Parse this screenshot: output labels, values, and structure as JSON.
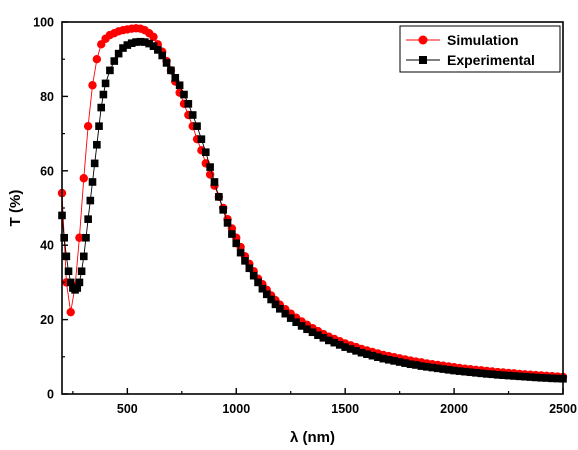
{
  "chart_data": {
    "type": "scatter",
    "xlabel": "λ (nm)",
    "ylabel": "T (%)",
    "xlim": [
      200,
      2500
    ],
    "ylim": [
      0,
      100
    ],
    "xticks": [
      500,
      1000,
      1500,
      2000,
      2500
    ],
    "yticks": [
      0,
      20,
      40,
      60,
      80,
      100
    ],
    "xtick_labels": [
      "500",
      "1000",
      "1500",
      "2000",
      "2500"
    ],
    "ytick_labels": [
      "0",
      "20",
      "40",
      "60",
      "80",
      "100"
    ],
    "grid": false,
    "legend_position": "top-right",
    "series": [
      {
        "name": "Simulation",
        "color": "#ff0000",
        "marker": "circle",
        "connected": true,
        "points": [
          [
            200,
            54
          ],
          [
            220,
            30
          ],
          [
            240,
            22
          ],
          [
            260,
            29
          ],
          [
            280,
            42
          ],
          [
            300,
            58
          ],
          [
            320,
            72
          ],
          [
            340,
            83
          ],
          [
            360,
            90
          ],
          [
            380,
            94
          ],
          [
            400,
            95.5
          ],
          [
            420,
            96.5
          ],
          [
            440,
            97
          ],
          [
            460,
            97.5
          ],
          [
            480,
            97.8
          ],
          [
            500,
            98
          ],
          [
            520,
            98.2
          ],
          [
            540,
            98.3
          ],
          [
            560,
            98.2
          ],
          [
            580,
            97.8
          ],
          [
            600,
            97
          ],
          [
            620,
            96
          ],
          [
            640,
            94
          ],
          [
            660,
            92
          ],
          [
            680,
            89.5
          ],
          [
            700,
            87
          ],
          [
            720,
            84
          ],
          [
            740,
            81
          ],
          [
            760,
            78
          ],
          [
            780,
            75
          ],
          [
            800,
            72
          ],
          [
            820,
            68.5
          ],
          [
            840,
            65.5
          ],
          [
            860,
            62
          ],
          [
            880,
            59
          ],
          [
            900,
            56
          ],
          [
            920,
            53
          ],
          [
            940,
            50
          ],
          [
            960,
            47
          ],
          [
            980,
            44.5
          ],
          [
            1000,
            42
          ],
          [
            1020,
            39.5
          ],
          [
            1040,
            37
          ],
          [
            1060,
            35
          ],
          [
            1080,
            33
          ],
          [
            1100,
            31
          ],
          [
            1120,
            29.5
          ],
          [
            1140,
            28
          ],
          [
            1160,
            26.5
          ],
          [
            1180,
            25.2
          ],
          [
            1200,
            24
          ],
          [
            1225,
            22.8
          ],
          [
            1250,
            21.6
          ],
          [
            1275,
            20.5
          ],
          [
            1300,
            19.5
          ],
          [
            1325,
            18.6
          ],
          [
            1350,
            17.7
          ],
          [
            1375,
            16.9
          ],
          [
            1400,
            16.1
          ],
          [
            1425,
            15.4
          ],
          [
            1450,
            14.8
          ],
          [
            1475,
            14.2
          ],
          [
            1500,
            13.6
          ],
          [
            1525,
            13.1
          ],
          [
            1550,
            12.6
          ],
          [
            1575,
            12.1
          ],
          [
            1600,
            11.7
          ],
          [
            1625,
            11.3
          ],
          [
            1650,
            10.9
          ],
          [
            1675,
            10.5
          ],
          [
            1700,
            10.2
          ],
          [
            1725,
            9.9
          ],
          [
            1750,
            9.6
          ],
          [
            1775,
            9.3
          ],
          [
            1800,
            9.0
          ],
          [
            1825,
            8.7
          ],
          [
            1850,
            8.5
          ],
          [
            1875,
            8.2
          ],
          [
            1900,
            8.0
          ],
          [
            1925,
            7.8
          ],
          [
            1950,
            7.6
          ],
          [
            1975,
            7.4
          ],
          [
            2000,
            7.2
          ],
          [
            2025,
            7.0
          ],
          [
            2050,
            6.8
          ],
          [
            2075,
            6.65
          ],
          [
            2100,
            6.5
          ],
          [
            2125,
            6.35
          ],
          [
            2150,
            6.2
          ],
          [
            2175,
            6.05
          ],
          [
            2200,
            5.9
          ],
          [
            2225,
            5.8
          ],
          [
            2250,
            5.65
          ],
          [
            2275,
            5.55
          ],
          [
            2300,
            5.4
          ],
          [
            2325,
            5.3
          ],
          [
            2350,
            5.2
          ],
          [
            2375,
            5.1
          ],
          [
            2400,
            5.0
          ],
          [
            2425,
            4.9
          ],
          [
            2450,
            4.8
          ],
          [
            2475,
            4.7
          ],
          [
            2500,
            4.6
          ]
        ]
      },
      {
        "name": "Experimental",
        "color": "#000000",
        "marker": "square",
        "connected": true,
        "points": [
          [
            200,
            48
          ],
          [
            210,
            42
          ],
          [
            220,
            37
          ],
          [
            230,
            33
          ],
          [
            240,
            30
          ],
          [
            250,
            28.5
          ],
          [
            260,
            28
          ],
          [
            270,
            28.5
          ],
          [
            280,
            30
          ],
          [
            290,
            33
          ],
          [
            300,
            37
          ],
          [
            310,
            42
          ],
          [
            320,
            47
          ],
          [
            330,
            52
          ],
          [
            340,
            57
          ],
          [
            350,
            62
          ],
          [
            360,
            67
          ],
          [
            370,
            72
          ],
          [
            380,
            77
          ],
          [
            390,
            80.5
          ],
          [
            400,
            83.5
          ],
          [
            420,
            87
          ],
          [
            440,
            89.5
          ],
          [
            460,
            91.5
          ],
          [
            480,
            93
          ],
          [
            500,
            93.8
          ],
          [
            520,
            94.3
          ],
          [
            540,
            94.6
          ],
          [
            560,
            94.7
          ],
          [
            580,
            94.6
          ],
          [
            600,
            94.2
          ],
          [
            620,
            93.5
          ],
          [
            640,
            92.5
          ],
          [
            660,
            91
          ],
          [
            680,
            89
          ],
          [
            700,
            87
          ],
          [
            720,
            85
          ],
          [
            740,
            83
          ],
          [
            760,
            80.5
          ],
          [
            780,
            78
          ],
          [
            800,
            75
          ],
          [
            820,
            72
          ],
          [
            840,
            68.5
          ],
          [
            860,
            65
          ],
          [
            880,
            61
          ],
          [
            900,
            57
          ],
          [
            920,
            53
          ],
          [
            940,
            49.5
          ],
          [
            960,
            46
          ],
          [
            980,
            43
          ],
          [
            1000,
            40.5
          ],
          [
            1020,
            38
          ],
          [
            1040,
            35.8
          ],
          [
            1060,
            33.8
          ],
          [
            1080,
            31.8
          ],
          [
            1100,
            30
          ],
          [
            1120,
            28.3
          ],
          [
            1140,
            26.8
          ],
          [
            1160,
            25.4
          ],
          [
            1180,
            24.1
          ],
          [
            1200,
            22.9
          ],
          [
            1225,
            21.6
          ],
          [
            1250,
            20.4
          ],
          [
            1275,
            19.3
          ],
          [
            1300,
            18.3
          ],
          [
            1325,
            17.4
          ],
          [
            1350,
            16.6
          ],
          [
            1375,
            15.8
          ],
          [
            1400,
            15.1
          ],
          [
            1425,
            14.4
          ],
          [
            1450,
            13.8
          ],
          [
            1475,
            13.2
          ],
          [
            1500,
            12.6
          ],
          [
            1525,
            12.1
          ],
          [
            1550,
            11.6
          ],
          [
            1575,
            11.1
          ],
          [
            1600,
            10.7
          ],
          [
            1625,
            10.3
          ],
          [
            1650,
            9.9
          ],
          [
            1675,
            9.5
          ],
          [
            1700,
            9.2
          ],
          [
            1725,
            8.9
          ],
          [
            1750,
            8.6
          ],
          [
            1775,
            8.3
          ],
          [
            1800,
            8.0
          ],
          [
            1825,
            7.8
          ],
          [
            1850,
            7.5
          ],
          [
            1875,
            7.3
          ],
          [
            1900,
            7.1
          ],
          [
            1925,
            6.9
          ],
          [
            1950,
            6.7
          ],
          [
            1975,
            6.5
          ],
          [
            2000,
            6.3
          ],
          [
            2025,
            6.15
          ],
          [
            2050,
            6.0
          ],
          [
            2075,
            5.85
          ],
          [
            2100,
            5.7
          ],
          [
            2125,
            5.55
          ],
          [
            2150,
            5.4
          ],
          [
            2175,
            5.3
          ],
          [
            2200,
            5.15
          ],
          [
            2225,
            5.05
          ],
          [
            2250,
            4.95
          ],
          [
            2275,
            4.85
          ],
          [
            2300,
            4.75
          ],
          [
            2325,
            4.65
          ],
          [
            2350,
            4.55
          ],
          [
            2375,
            4.45
          ],
          [
            2400,
            4.35
          ],
          [
            2425,
            4.3
          ],
          [
            2450,
            4.2
          ],
          [
            2475,
            4.15
          ],
          [
            2500,
            4.1
          ]
        ]
      }
    ]
  }
}
